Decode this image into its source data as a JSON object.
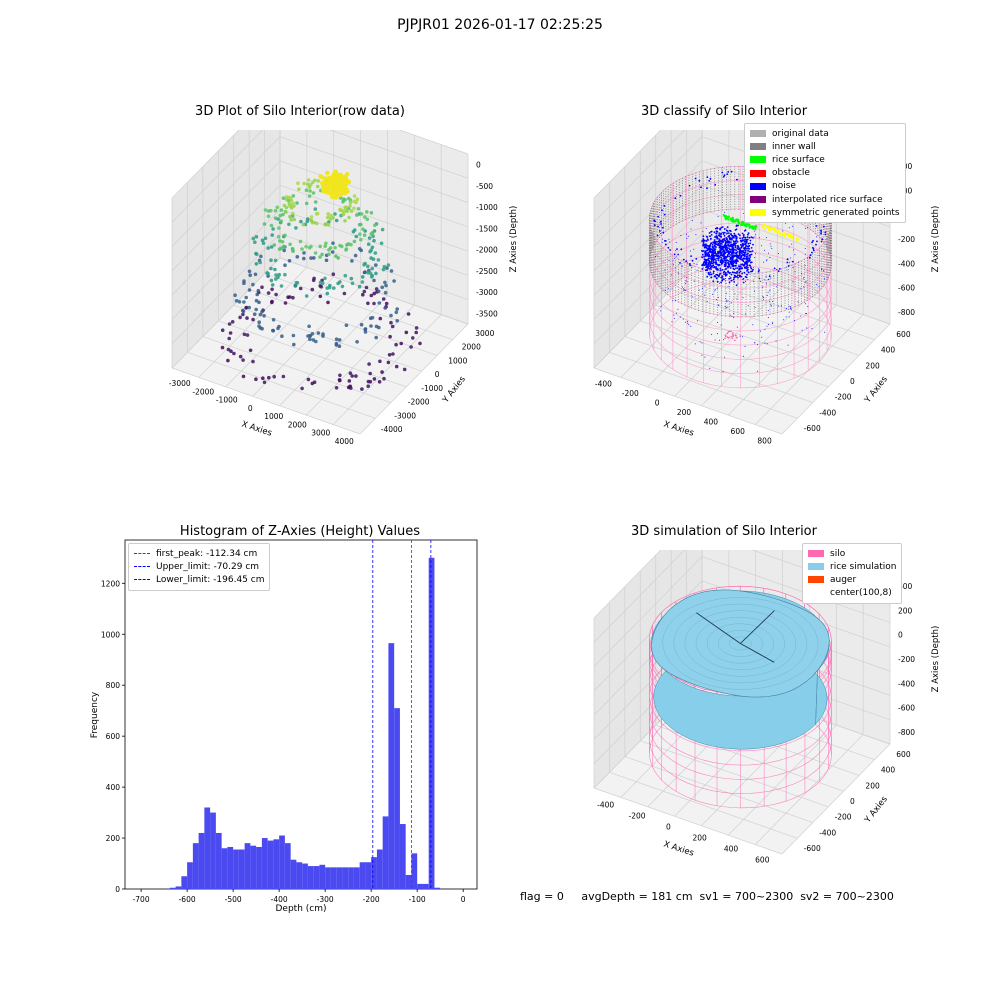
{
  "suptitle": "PJPJR01 2026-01-17 02:25:25",
  "status_line": "flag = 0     avgDepth = 181 cm  sv1 = 700~2300  sv2 = 700~2300",
  "chart_data": [
    {
      "type": "scatter",
      "title": "3D Plot of Silo Interior(row data)",
      "xlabel": "X Axies",
      "ylabel": "Y Axies",
      "zlabel": "Z Axies (Depth)",
      "x_ticks": [
        "-3000",
        "-2000",
        "-1000",
        "0",
        "1000",
        "2000",
        "3000",
        "4000"
      ],
      "y_ticks": [
        "-4000",
        "-3000",
        "-2000",
        "-1000",
        "0",
        "1000",
        "2000",
        "3000"
      ],
      "z_ticks": [
        "0",
        "-500",
        "-1000",
        "-1500",
        "-2000",
        "-2500",
        "-3000",
        "-3500"
      ],
      "colormap": "viridis"
    },
    {
      "type": "scatter",
      "title": "3D classify of Silo Interior",
      "xlabel": "X Axies",
      "ylabel": "Y Axies",
      "zlabel": "Z Axies (Depth)",
      "x_ticks": [
        "-400",
        "-200",
        "0",
        "200",
        "400",
        "600",
        "800"
      ],
      "y_ticks": [
        "-600",
        "-400",
        "-200",
        "0",
        "200",
        "400",
        "600"
      ],
      "z_ticks": [
        "400",
        "200",
        "0",
        "-200",
        "-400",
        "-600",
        "-800"
      ],
      "legend": [
        {
          "label": "original data",
          "color": "#b0b0b0"
        },
        {
          "label": "inner wall",
          "color": "#808080"
        },
        {
          "label": "rice surface",
          "color": "#00ff00"
        },
        {
          "label": "obstacle",
          "color": "#ff0000"
        },
        {
          "label": "noise",
          "color": "#0000ff"
        },
        {
          "label": "interpolated rice surface",
          "color": "#800080"
        },
        {
          "label": "symmetric generated points",
          "color": "#ffff00"
        }
      ],
      "legend_position": "top-right"
    },
    {
      "type": "bar",
      "title": "Histogram of Z-Axies (Height) Values",
      "xlabel": "Depth (cm)",
      "ylabel": "Frequency",
      "xlim": [
        -735,
        30
      ],
      "ylim": [
        0,
        1370
      ],
      "x_ticks": [
        -700,
        -600,
        -500,
        -400,
        -300,
        -200,
        -100,
        0
      ],
      "y_ticks": [
        0,
        200,
        400,
        600,
        800,
        1000,
        1200
      ],
      "bin_width": 12.5,
      "bin_starts": [
        -637.5,
        -625,
        -612.5,
        -600,
        -587.5,
        -575,
        -562.5,
        -550,
        -537.5,
        -525,
        -512.5,
        -500,
        -487.5,
        -475,
        -462.5,
        -450,
        -437.5,
        -425,
        -412.5,
        -400,
        -387.5,
        -375,
        -362.5,
        -350,
        -337.5,
        -325,
        -312.5,
        -300,
        -287.5,
        -275,
        -262.5,
        -250,
        -237.5,
        -225,
        -212.5,
        -200,
        -187.5,
        -175,
        -162.5,
        -150,
        -137.5,
        -125,
        -112.5,
        -100,
        -87.5,
        -75,
        -62.5,
        -50,
        -37.5,
        -25,
        -12.5
      ],
      "values": [
        5,
        10,
        50,
        105,
        180,
        220,
        320,
        300,
        220,
        160,
        165,
        155,
        155,
        180,
        170,
        165,
        200,
        190,
        195,
        210,
        180,
        115,
        105,
        100,
        90,
        90,
        95,
        85,
        85,
        85,
        85,
        85,
        85,
        105,
        105,
        125,
        155,
        285,
        965,
        710,
        255,
        55,
        140,
        20,
        20,
        1300,
        5,
        0,
        0,
        0,
        0
      ],
      "bar_color": "#4a4af0",
      "lines": [
        {
          "label": "first_peak: -112.34 cm",
          "x": -112.34,
          "color": "#ff0000"
        },
        {
          "label": "Upper_limit: -70.29 cm",
          "x": -70.29,
          "color": "#0000ff"
        },
        {
          "label": "Lower_limit: -196.45 cm",
          "x": -196.45,
          "color": "#0000ff"
        }
      ],
      "legend_position": "top-left"
    },
    {
      "type": "scatter",
      "title": "3D simulation of Silo Interior",
      "xlabel": "X Axies",
      "ylabel": "Y Axies",
      "zlabel": "Z Axies (Depth)",
      "x_ticks": [
        "-400",
        "-200",
        "0",
        "200",
        "400",
        "600"
      ],
      "y_ticks": [
        "-600",
        "-400",
        "-200",
        "0",
        "200",
        "400",
        "600"
      ],
      "z_ticks": [
        "400",
        "200",
        "0",
        "-200",
        "-400",
        "-600",
        "-800"
      ],
      "legend": [
        {
          "label": "silo",
          "color": "#ff69b4"
        },
        {
          "label": "rice simulation",
          "color": "#87ceeb"
        },
        {
          "label": "auger",
          "color": "#ff4500"
        },
        {
          "label": "center(100,8)",
          "color": "#ffffff"
        }
      ],
      "legend_position": "top-right"
    }
  ]
}
